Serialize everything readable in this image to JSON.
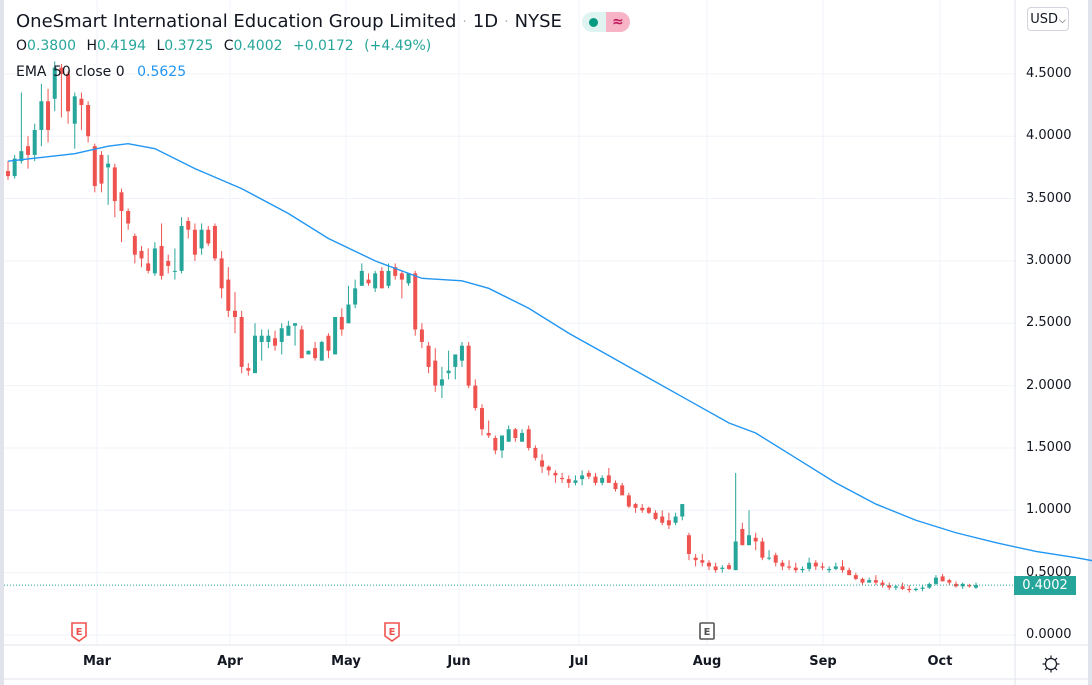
{
  "header": {
    "symbol_name": "OneSmart International Education Group Limited",
    "interval": "1D",
    "exchange": "NYSE",
    "separator": "·",
    "badge_live_icon": "market-open-dot-icon",
    "badge_delay_icon": "delayed-data-icon",
    "badge_delay_glyph": "≈"
  },
  "ohlc": {
    "open_label": "O",
    "open": "0.3800",
    "high_label": "H",
    "high": "0.4194",
    "low_label": "L",
    "low": "0.3725",
    "close_label": "C",
    "close": "0.4002",
    "change": "+0.0172",
    "change_pct": "(+4.49%)"
  },
  "indicator": {
    "name": "EMA",
    "args": "50 close 0",
    "value": "0.5625"
  },
  "price_scale": {
    "currency": "USD",
    "labels": [
      "4.5000",
      "4.0000",
      "3.5000",
      "3.0000",
      "2.5000",
      "2.0000",
      "1.5000",
      "1.0000",
      "0.5000",
      "0.0000"
    ],
    "last_price": "0.4002"
  },
  "time_scale": {
    "labels": [
      "Mar",
      "Apr",
      "May",
      "Jun",
      "Jul",
      "Aug",
      "Sep",
      "Oct"
    ]
  },
  "earnings_markers": [
    {
      "label": "E",
      "state": "past"
    },
    {
      "label": "E",
      "state": "past"
    },
    {
      "label": "E",
      "state": "neutral"
    }
  ],
  "colors": {
    "up": "#26a69a",
    "down": "#ef5350",
    "ema": "#2196f3",
    "grid": "#f0f3fa",
    "last_price": "#26a69a"
  },
  "chart_data": {
    "type": "candlestick",
    "title": "OneSmart International Education Group Limited · 1D · NYSE",
    "xlabel": "",
    "ylabel": "USD",
    "ylim": [
      0,
      4.7
    ],
    "grid": true,
    "legend_position": "top-left",
    "x_ticks": [
      "Mar",
      "Apr",
      "May",
      "Jun",
      "Jul",
      "Aug",
      "Sep",
      "Oct"
    ],
    "y_ticks": [
      0.0,
      0.5,
      1.0,
      1.5,
      2.0,
      2.5,
      3.0,
      3.5,
      4.0,
      4.5
    ],
    "series": [
      {
        "name": "Price",
        "ohlc": [
          [
            3.72,
            3.8,
            3.65,
            3.68
          ],
          [
            3.68,
            3.85,
            3.66,
            3.82
          ],
          [
            3.8,
            4.35,
            3.78,
            3.88
          ],
          [
            3.92,
            4.0,
            3.74,
            3.85
          ],
          [
            3.85,
            4.1,
            3.8,
            4.05
          ],
          [
            4.05,
            4.42,
            3.92,
            4.28
          ],
          [
            4.28,
            4.38,
            3.95,
            4.05
          ],
          [
            4.3,
            4.6,
            4.2,
            4.55
          ],
          [
            4.55,
            4.58,
            4.15,
            4.5
          ],
          [
            4.5,
            4.52,
            4.1,
            4.2
          ],
          [
            4.1,
            4.35,
            3.9,
            4.32
          ],
          [
            4.3,
            4.35,
            4.05,
            4.25
          ],
          [
            4.25,
            4.28,
            3.95,
            4.0
          ],
          [
            3.92,
            3.94,
            3.55,
            3.6
          ],
          [
            3.85,
            3.88,
            3.55,
            3.62
          ],
          [
            3.75,
            3.85,
            3.45,
            3.78
          ],
          [
            3.75,
            3.78,
            3.35,
            3.48
          ],
          [
            3.55,
            3.58,
            3.15,
            3.4
          ],
          [
            3.4,
            3.42,
            3.25,
            3.3
          ],
          [
            3.2,
            3.22,
            2.98,
            3.05
          ],
          [
            3.08,
            3.12,
            2.95,
            3.02
          ],
          [
            2.98,
            3.1,
            2.9,
            2.92
          ],
          [
            2.9,
            3.15,
            2.88,
            3.1
          ],
          [
            3.12,
            3.3,
            2.85,
            2.88
          ],
          [
            3.0,
            3.05,
            2.9,
            2.96
          ],
          [
            2.92,
            3.1,
            2.85,
            2.92
          ],
          [
            2.92,
            3.35,
            2.9,
            3.28
          ],
          [
            3.32,
            3.35,
            3.18,
            3.25
          ],
          [
            3.25,
            3.3,
            3.0,
            3.05
          ],
          [
            3.1,
            3.3,
            3.05,
            3.25
          ],
          [
            3.25,
            3.28,
            3.12,
            3.14
          ],
          [
            3.28,
            3.3,
            3.0,
            3.02
          ],
          [
            3.02,
            3.08,
            2.7,
            2.78
          ],
          [
            2.85,
            2.95,
            2.55,
            2.6
          ],
          [
            2.6,
            2.75,
            2.42,
            2.55
          ],
          [
            2.55,
            2.6,
            2.1,
            2.15
          ],
          [
            2.14,
            2.18,
            2.08,
            2.12
          ],
          [
            2.1,
            2.5,
            2.12,
            2.4
          ],
          [
            2.35,
            2.45,
            2.2,
            2.4
          ],
          [
            2.35,
            2.45,
            2.3,
            2.4
          ],
          [
            2.38,
            2.44,
            2.28,
            2.32
          ],
          [
            2.35,
            2.5,
            2.25,
            2.46
          ],
          [
            2.4,
            2.52,
            2.4,
            2.48
          ],
          [
            2.48,
            2.5,
            2.32,
            2.5
          ],
          [
            2.45,
            2.48,
            2.22,
            2.22
          ],
          [
            2.25,
            2.28,
            2.25,
            2.28
          ],
          [
            2.3,
            2.35,
            2.2,
            2.22
          ],
          [
            2.2,
            2.36,
            2.2,
            2.35
          ],
          [
            2.4,
            2.42,
            2.22,
            2.28
          ],
          [
            2.25,
            2.55,
            2.25,
            2.55
          ],
          [
            2.55,
            2.62,
            2.4,
            2.45
          ],
          [
            2.5,
            2.8,
            2.5,
            2.65
          ],
          [
            2.65,
            2.85,
            2.62,
            2.78
          ],
          [
            2.8,
            2.98,
            2.8,
            2.92
          ],
          [
            2.85,
            2.9,
            2.8,
            2.82
          ],
          [
            2.78,
            2.92,
            2.75,
            2.9
          ],
          [
            2.92,
            2.95,
            2.78,
            2.78
          ],
          [
            2.8,
            2.98,
            2.78,
            2.92
          ],
          [
            2.95,
            2.98,
            2.85,
            2.88
          ],
          [
            2.9,
            2.92,
            2.7,
            2.85
          ],
          [
            2.82,
            2.9,
            2.8,
            2.9
          ],
          [
            2.9,
            2.92,
            2.4,
            2.45
          ],
          [
            2.45,
            2.5,
            2.3,
            2.35
          ],
          [
            2.32,
            2.35,
            2.1,
            2.15
          ],
          [
            2.2,
            2.3,
            1.95,
            2.0
          ],
          [
            2.0,
            2.15,
            1.9,
            2.05
          ],
          [
            2.1,
            2.28,
            2.05,
            2.12
          ],
          [
            2.15,
            2.25,
            2.05,
            2.25
          ],
          [
            2.2,
            2.35,
            2.15,
            2.32
          ],
          [
            2.32,
            2.35,
            1.98,
            2.0
          ],
          [
            2.0,
            2.05,
            1.8,
            1.82
          ],
          [
            1.82,
            1.85,
            1.6,
            1.65
          ],
          [
            1.62,
            1.72,
            1.58,
            1.6
          ],
          [
            1.58,
            1.6,
            1.45,
            1.48
          ],
          [
            1.48,
            1.6,
            1.42,
            1.6
          ],
          [
            1.55,
            1.68,
            1.55,
            1.65
          ],
          [
            1.65,
            1.66,
            1.55,
            1.58
          ],
          [
            1.55,
            1.65,
            1.55,
            1.62
          ],
          [
            1.65,
            1.68,
            1.48,
            1.5
          ],
          [
            1.5,
            1.52,
            1.4,
            1.42
          ],
          [
            1.4,
            1.45,
            1.3,
            1.35
          ],
          [
            1.35,
            1.36,
            1.28,
            1.32
          ],
          [
            1.3,
            1.32,
            1.22,
            1.28
          ],
          [
            1.26,
            1.3,
            1.22,
            1.25
          ],
          [
            1.25,
            1.28,
            1.18,
            1.22
          ],
          [
            1.22,
            1.28,
            1.2,
            1.24
          ],
          [
            1.25,
            1.32,
            1.2,
            1.28
          ],
          [
            1.3,
            1.32,
            1.25,
            1.27
          ],
          [
            1.27,
            1.3,
            1.2,
            1.22
          ],
          [
            1.22,
            1.28,
            1.2,
            1.26
          ],
          [
            1.28,
            1.34,
            1.22,
            1.22
          ],
          [
            1.22,
            1.24,
            1.15,
            1.17
          ],
          [
            1.2,
            1.22,
            1.12,
            1.12
          ],
          [
            1.12,
            1.14,
            1.02,
            1.03
          ],
          [
            1.05,
            1.06,
            0.98,
            1.02
          ],
          [
            1.02,
            1.05,
            0.98,
            1.0
          ],
          [
            1.02,
            1.03,
            0.97,
            0.98
          ],
          [
            0.98,
            1.0,
            0.92,
            0.93
          ],
          [
            0.95,
            1.0,
            0.88,
            0.9
          ],
          [
            0.92,
            0.98,
            0.85,
            0.88
          ],
          [
            0.9,
            0.98,
            0.88,
            0.95
          ],
          [
            0.95,
            1.05,
            0.92,
            1.05
          ],
          [
            0.8,
            0.82,
            0.6,
            0.65
          ],
          [
            0.62,
            0.65,
            0.55,
            0.6
          ],
          [
            0.6,
            0.65,
            0.55,
            0.58
          ],
          [
            0.58,
            0.6,
            0.52,
            0.55
          ],
          [
            0.55,
            0.58,
            0.5,
            0.52
          ],
          [
            0.53,
            0.56,
            0.5,
            0.54
          ],
          [
            0.56,
            0.58,
            0.52,
            0.53
          ],
          [
            0.52,
            1.3,
            0.52,
            0.75
          ],
          [
            0.85,
            0.9,
            0.72,
            0.72
          ],
          [
            0.72,
            1.0,
            0.72,
            0.8
          ],
          [
            0.78,
            0.82,
            0.68,
            0.75
          ],
          [
            0.75,
            0.78,
            0.6,
            0.62
          ],
          [
            0.62,
            0.68,
            0.6,
            0.62
          ],
          [
            0.64,
            0.66,
            0.55,
            0.58
          ],
          [
            0.58,
            0.6,
            0.52,
            0.55
          ],
          [
            0.55,
            0.6,
            0.52,
            0.54
          ],
          [
            0.54,
            0.58,
            0.5,
            0.52
          ],
          [
            0.52,
            0.55,
            0.5,
            0.53
          ],
          [
            0.53,
            0.62,
            0.51,
            0.58
          ],
          [
            0.58,
            0.6,
            0.52,
            0.55
          ],
          [
            0.55,
            0.58,
            0.52,
            0.54
          ],
          [
            0.52,
            0.55,
            0.5,
            0.53
          ],
          [
            0.53,
            0.58,
            0.52,
            0.55
          ],
          [
            0.55,
            0.6,
            0.5,
            0.52
          ],
          [
            0.52,
            0.54,
            0.48,
            0.48
          ],
          [
            0.48,
            0.5,
            0.44,
            0.45
          ],
          [
            0.45,
            0.46,
            0.4,
            0.42
          ],
          [
            0.42,
            0.46,
            0.42,
            0.44
          ],
          [
            0.44,
            0.48,
            0.4,
            0.42
          ],
          [
            0.42,
            0.44,
            0.38,
            0.4
          ],
          [
            0.4,
            0.42,
            0.36,
            0.38
          ],
          [
            0.38,
            0.4,
            0.36,
            0.39
          ],
          [
            0.39,
            0.42,
            0.36,
            0.37
          ],
          [
            0.37,
            0.4,
            0.34,
            0.36
          ],
          [
            0.36,
            0.38,
            0.35,
            0.37
          ],
          [
            0.37,
            0.4,
            0.35,
            0.38
          ],
          [
            0.38,
            0.42,
            0.37,
            0.41
          ],
          [
            0.41,
            0.48,
            0.4,
            0.46
          ],
          [
            0.47,
            0.49,
            0.43,
            0.43
          ],
          [
            0.44,
            0.45,
            0.4,
            0.42
          ],
          [
            0.41,
            0.43,
            0.38,
            0.39
          ],
          [
            0.39,
            0.42,
            0.37,
            0.41
          ],
          [
            0.4,
            0.41,
            0.38,
            0.39
          ],
          [
            0.38,
            0.42,
            0.37,
            0.4
          ]
        ]
      },
      {
        "name": "EMA 50 close 0",
        "points": [
          [
            0,
            3.8
          ],
          [
            10,
            3.86
          ],
          [
            15,
            3.92
          ],
          [
            18,
            3.94
          ],
          [
            22,
            3.9
          ],
          [
            28,
            3.74
          ],
          [
            35,
            3.58
          ],
          [
            42,
            3.38
          ],
          [
            48,
            3.18
          ],
          [
            55,
            3.0
          ],
          [
            62,
            2.86
          ],
          [
            68,
            2.84
          ],
          [
            72,
            2.78
          ],
          [
            78,
            2.62
          ],
          [
            84,
            2.42
          ],
          [
            90,
            2.24
          ],
          [
            96,
            2.06
          ],
          [
            102,
            1.88
          ],
          [
            108,
            1.7
          ],
          [
            112,
            1.62
          ],
          [
            118,
            1.42
          ],
          [
            124,
            1.22
          ],
          [
            130,
            1.05
          ],
          [
            136,
            0.92
          ],
          [
            142,
            0.82
          ],
          [
            148,
            0.74
          ],
          [
            154,
            0.67
          ],
          [
            160,
            0.62
          ],
          [
            166,
            0.56
          ]
        ]
      }
    ]
  }
}
